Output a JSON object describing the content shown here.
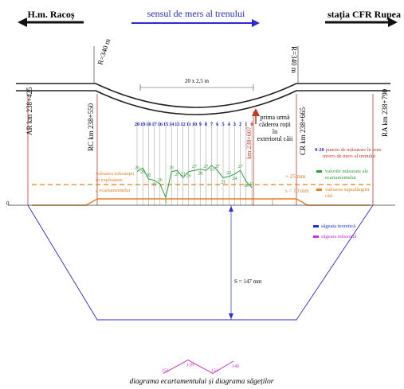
{
  "header": {
    "left_station": "H.m. Racoș",
    "direction_label": "sensul de mers al trenului",
    "right_station": "stația CFR Rupea"
  },
  "curve": {
    "radius_left": "R=340 m",
    "radius_right": "R=340 m",
    "span_label": "20 x 2,5 m"
  },
  "kilometre_posts": {
    "ar": "AR km 238+425",
    "rc": "RC km 238+550",
    "derail": "km 238+607",
    "cr": "CR km 238+665",
    "ra": "RA km 238+790"
  },
  "points": [
    "20",
    "19",
    "18",
    "17",
    "16",
    "15",
    "14",
    "13",
    "12",
    "11",
    "10",
    "9",
    "8",
    "7",
    "6",
    "5",
    "4",
    "3",
    "2",
    "1",
    "0"
  ],
  "annotations": {
    "derail_note_1": "prima urmă",
    "derail_note_2": "căderea roții",
    "derail_note_3": "în",
    "derail_note_4": "exteriorul căii",
    "points_note_prefix": "0-20",
    "points_note_1": " puncte de măsurare în sens",
    "points_note_2": "invers de mers al trenului",
    "left_note_1": "valoarea toleranței",
    "left_note_2": "în exploatare",
    "left_note_3": "a ecartamentului",
    "tol_label": "+ 25 mm",
    "widening_label": "s = 10 mm",
    "zero_label": "0",
    "sag_label": "S = 147 mm",
    "caption": "diagrama ecartamentului și diagrama săgeților"
  },
  "legend": {
    "gauge_measured_1": "valorile măsurate ale",
    "gauge_measured_2": "ecartamentului",
    "widening_1": "valoarea supralărgirii",
    "widening_2": "căii",
    "sag_theoretical": "săgeata teoretică",
    "sag_measured": "săgeata măsurată"
  },
  "gauge_values": [
    "26",
    "29",
    "20",
    "19",
    "16",
    "5",
    "26",
    "27",
    "21",
    "26",
    "27",
    "28",
    "27",
    "31",
    "27",
    "21",
    "22",
    "24",
    "27",
    "18",
    "13"
  ],
  "sag_values": [
    "151",
    "139",
    "151",
    "140"
  ],
  "colors": {
    "track": "#222222",
    "red_post": "#c0392b",
    "orange": "#e67e22",
    "green": "#2e9e3a",
    "blue": "#1f2fd0",
    "magenta": "#cc33cc",
    "grey_grid": "#9a9a9a"
  }
}
